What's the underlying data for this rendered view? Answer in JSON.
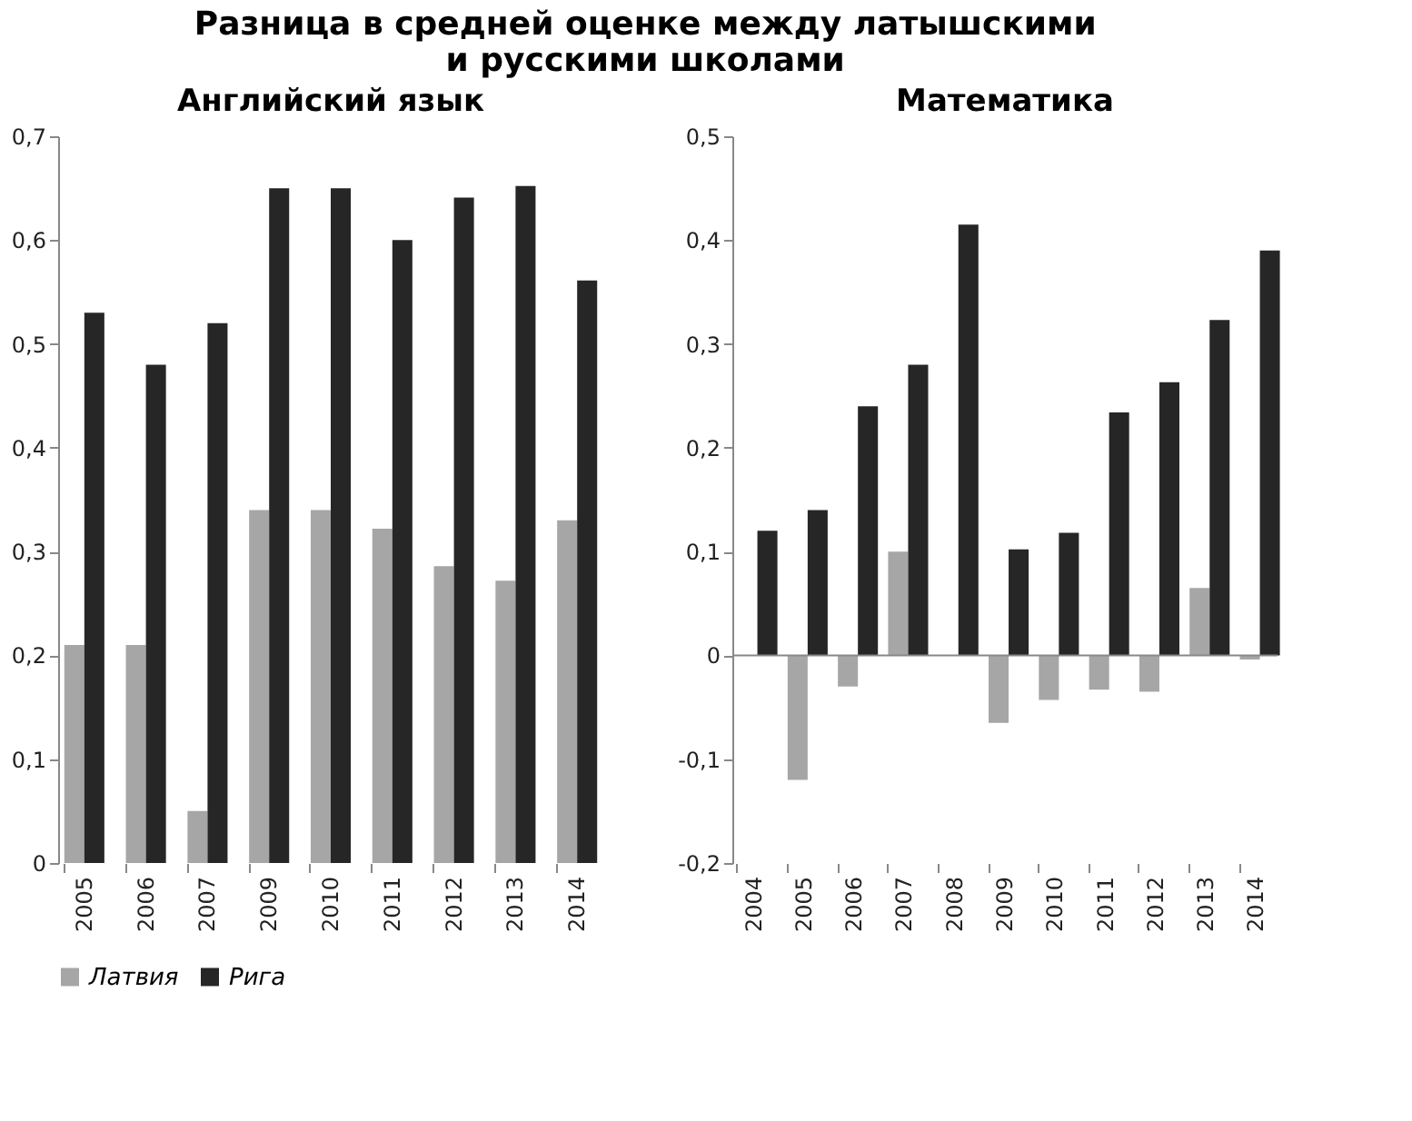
{
  "chart_data": [
    {
      "type": "bar",
      "title": "Английский язык",
      "annotations": [
        "Разница в средней оценке между латышскими\nи русскими школами"
      ],
      "categories": [
        "2005",
        "2006",
        "2007",
        "2009",
        "2010",
        "2011",
        "2012",
        "2013",
        "2014"
      ],
      "series": [
        {
          "name": "Латвия",
          "color": "#a6a6a6",
          "values": [
            0.21,
            0.21,
            0.05,
            0.34,
            0.34,
            0.322,
            0.286,
            0.272,
            0.33
          ]
        },
        {
          "name": "Рига",
          "color": "#262626",
          "values": [
            0.53,
            0.48,
            0.52,
            0.65,
            0.65,
            0.6,
            0.641,
            0.652,
            0.561
          ]
        }
      ],
      "ylim": [
        0,
        0.7
      ],
      "yticks": [
        0,
        {
          "value": 0.1,
          "label": "0,1"
        },
        {
          "value": 0.2,
          "label": "0,2"
        },
        {
          "value": 0.3,
          "label": "0,3"
        },
        {
          "value": 0.4,
          "label": "0,4"
        },
        {
          "value": 0.5,
          "label": "0,5"
        },
        {
          "value": 0.6,
          "label": "0,6"
        },
        {
          "value": 0.7,
          "label": "0,7"
        }
      ],
      "grid": false,
      "legend": "bottom"
    },
    {
      "type": "bar",
      "title": "Математика",
      "categories": [
        "2004",
        "2005",
        "2006",
        "2007",
        "2008",
        "2009",
        "2010",
        "2011",
        "2012",
        "2013",
        "2014"
      ],
      "series": [
        {
          "name": "Латвия",
          "color": "#a6a6a6",
          "values": [
            null,
            -0.12,
            -0.03,
            0.1,
            null,
            -0.065,
            -0.043,
            -0.033,
            -0.035,
            0.065,
            -0.004
          ]
        },
        {
          "name": "Рига",
          "color": "#262626",
          "values": [
            0.12,
            0.14,
            0.24,
            0.28,
            0.415,
            0.102,
            0.118,
            0.234,
            0.263,
            0.323,
            0.39
          ]
        }
      ],
      "ylim": [
        -0.2,
        0.5
      ],
      "yticks": [
        {
          "value": -0.2,
          "label": "-0,2"
        },
        {
          "value": -0.1,
          "label": "-0,1"
        },
        0,
        {
          "value": 0.1,
          "label": "0,1"
        },
        {
          "value": 0.2,
          "label": "0,2"
        },
        {
          "value": 0.3,
          "label": "0,3"
        },
        {
          "value": 0.4,
          "label": "0,4"
        },
        {
          "value": 0.5,
          "label": "0,5"
        }
      ],
      "ref_lines": [
        {
          "axis": "y",
          "value": 0
        }
      ],
      "grid": false,
      "legend": "bottom"
    }
  ]
}
